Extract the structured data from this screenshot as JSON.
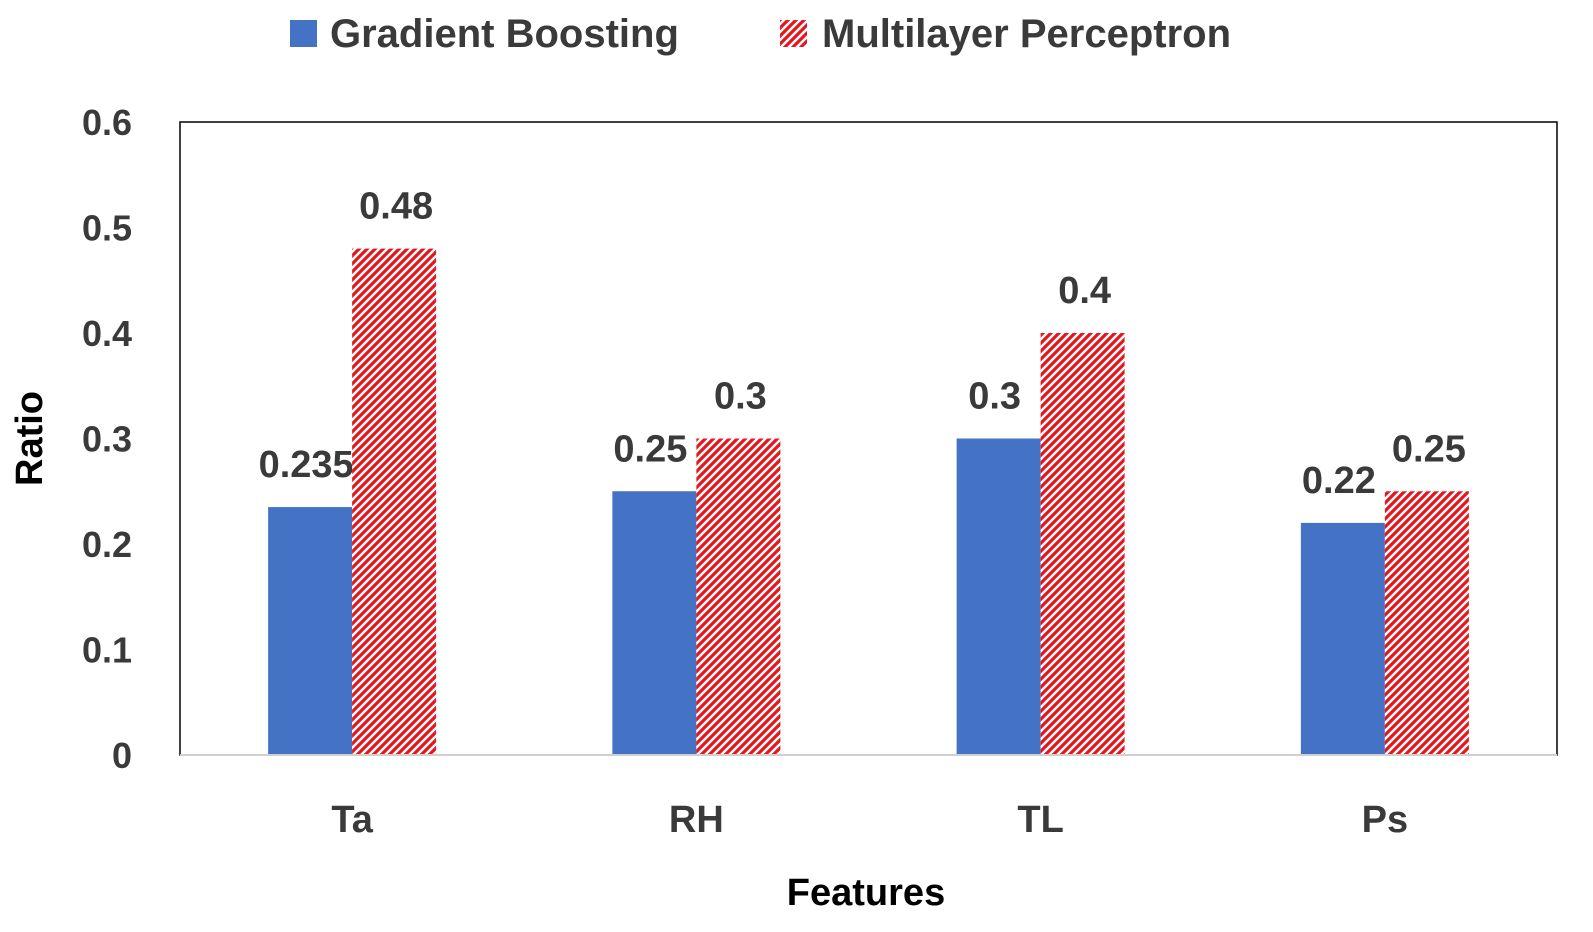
{
  "chart_data": {
    "type": "bar",
    "title": "",
    "xlabel": "Features",
    "ylabel": "Ratio",
    "categories": [
      "Ta",
      "RH",
      "TL",
      "Ps"
    ],
    "series": [
      {
        "name": "Gradient Boosting",
        "values": [
          0.235,
          0.25,
          0.3,
          0.22
        ],
        "labels": [
          "0.235",
          "0.25",
          "0.3",
          "0.22"
        ],
        "color": "#4472C4",
        "fill": "solid"
      },
      {
        "name": "Multilayer Perceptron",
        "values": [
          0.48,
          0.3,
          0.4,
          0.25
        ],
        "labels": [
          "0.48",
          "0.3",
          "0.4",
          "0.25"
        ],
        "color": "#E8141C",
        "fill": "diagonal-hatch"
      }
    ],
    "ylim": [
      0,
      0.6
    ],
    "yticks": [
      0,
      0.1,
      0.2,
      0.3,
      0.4,
      0.5,
      0.6
    ],
    "ytick_labels": [
      "0",
      "0.1",
      "0.2",
      "0.3",
      "0.4",
      "0.5",
      "0.6"
    ],
    "grid": false,
    "legend_position": "top-center"
  }
}
